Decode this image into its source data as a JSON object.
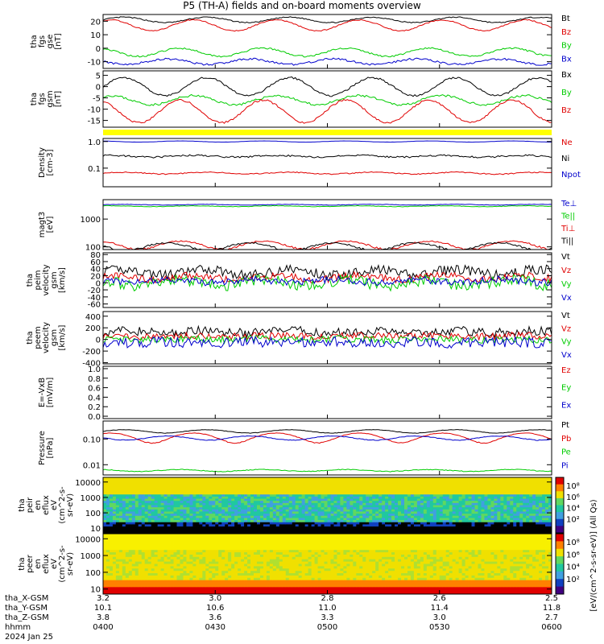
{
  "title": "P5 (TH-A) fields and on-board moments overview",
  "colors": {
    "black": "#000000",
    "red": "#e00000",
    "green": "#00cc00",
    "blue": "#0000cc",
    "yellow": "#ffff00"
  },
  "chart_data": [
    {
      "type": "line",
      "panel": "fgs_gse",
      "ylabel": [
        "tha",
        "fgs",
        "gse",
        "[nT]"
      ],
      "ylim": [
        -15,
        25
      ],
      "yticks": [
        "20",
        "10",
        "0",
        "-10"
      ],
      "ytick_values": [
        20,
        10,
        0,
        -10
      ],
      "log": false,
      "series": [
        {
          "name": "Bt",
          "color": "black",
          "base": 21,
          "amp": 2,
          "noise": 0.4
        },
        {
          "name": "Bz",
          "color": "red",
          "base": 17,
          "amp": 4,
          "noise": 0.4
        },
        {
          "name": "By",
          "color": "green",
          "base": -3,
          "amp": 3,
          "noise": 0.6
        },
        {
          "name": "Bx",
          "color": "blue",
          "base": -10,
          "amp": 2,
          "noise": 0.7
        }
      ]
    },
    {
      "type": "line",
      "panel": "fgs_gsm",
      "ylabel": [
        "tha",
        "fgs",
        "gsm",
        "[nT]"
      ],
      "ylim": [
        -18,
        7
      ],
      "yticks": [
        "5",
        "0",
        "-5",
        "-10",
        "-15"
      ],
      "ytick_values": [
        5,
        0,
        -5,
        -10,
        -15
      ],
      "log": false,
      "series": [
        {
          "name": "Bx",
          "color": "black",
          "base": 0,
          "amp": 4,
          "noise": 0.4
        },
        {
          "name": "By",
          "color": "green",
          "base": -6,
          "amp": 2,
          "noise": 0.5
        },
        {
          "name": "Bz",
          "color": "red",
          "base": -11,
          "amp": 5,
          "noise": 0.4
        }
      ]
    },
    {
      "type": "line",
      "panel": "density",
      "ylabel": [
        "Density",
        "[cm-3]"
      ],
      "ylim": [
        0.02,
        1.3
      ],
      "yticks": [
        "1.0",
        "0.1"
      ],
      "ytick_values": [
        1.0,
        0.1
      ],
      "log": true,
      "series": [
        {
          "name": "Ne",
          "color": "red",
          "base": 0.065,
          "amp": 0.005,
          "noise": 0.003
        },
        {
          "name": "Ni",
          "color": "black",
          "base": 0.28,
          "amp": 0.02,
          "noise": 0.02
        },
        {
          "name": "Npot",
          "color": "blue",
          "base": 1.0,
          "amp": 0.05,
          "noise": 0.005
        }
      ]
    },
    {
      "type": "line",
      "panel": "temperature",
      "ylabel": [
        "magt3",
        "[eV]"
      ],
      "ylim": [
        80,
        5000
      ],
      "yticks": [
        "1000",
        "100"
      ],
      "ytick_values": [
        1000,
        100
      ],
      "log": true,
      "series": [
        {
          "name": "Te⊥",
          "color": "blue",
          "base": 3300,
          "amp": 100,
          "noise": 60
        },
        {
          "name": "Te||",
          "color": "green",
          "base": 2900,
          "amp": 100,
          "noise": 60
        },
        {
          "name": "Ti⊥",
          "color": "red",
          "base": 120,
          "amp": 40,
          "noise": 8
        },
        {
          "name": "Ti||",
          "color": "black",
          "base": 105,
          "amp": 35,
          "noise": 8
        }
      ]
    },
    {
      "type": "line",
      "panel": "peim_velocity",
      "ylabel": [
        "tha",
        "peim",
        "velocity",
        "gsm",
        "[km/s]"
      ],
      "ylim": [
        -70,
        85
      ],
      "yticks": [
        "80",
        "60",
        "40",
        "20",
        "0",
        "-20",
        "-40",
        "-60"
      ],
      "ytick_values": [
        80,
        60,
        40,
        20,
        0,
        -20,
        -40,
        -60
      ],
      "log": false,
      "series": [
        {
          "name": "Vt",
          "color": "black",
          "base": 30,
          "amp": 8,
          "noise": 14
        },
        {
          "name": "Vz",
          "color": "red",
          "base": 15,
          "amp": 6,
          "noise": 10
        },
        {
          "name": "Vy",
          "color": "green",
          "base": 0,
          "amp": 8,
          "noise": 16
        },
        {
          "name": "Vx",
          "color": "blue",
          "base": 5,
          "amp": 4,
          "noise": 10
        }
      ]
    },
    {
      "type": "line",
      "panel": "peem_velocity",
      "ylabel": [
        "tha",
        "peem",
        "velocity",
        "gsm",
        "[km/s]"
      ],
      "ylim": [
        -420,
        480
      ],
      "yticks": [
        "400",
        "200",
        "0",
        "-200",
        "-400"
      ],
      "ytick_values": [
        400,
        200,
        0,
        -200,
        -400
      ],
      "log": false,
      "series": [
        {
          "name": "Vt",
          "color": "black",
          "base": 130,
          "amp": 20,
          "noise": 80
        },
        {
          "name": "Vz",
          "color": "red",
          "base": 60,
          "amp": 10,
          "noise": 60
        },
        {
          "name": "Vy",
          "color": "green",
          "base": 0,
          "amp": 10,
          "noise": 60
        },
        {
          "name": "Vx",
          "color": "blue",
          "base": -50,
          "amp": 10,
          "noise": 90
        }
      ]
    },
    {
      "type": "line",
      "panel": "efield",
      "ylabel": [
        "E=-VxB",
        "[mV/m]"
      ],
      "ylim": [
        -0.05,
        1.05
      ],
      "yticks": [
        "1.0",
        "0.8",
        "0.6",
        "0.4",
        "0.2",
        "0.0"
      ],
      "ytick_values": [
        1.0,
        0.8,
        0.6,
        0.4,
        0.2,
        0.0
      ],
      "log": false,
      "series": [
        {
          "name": "Ez",
          "color": "red"
        },
        {
          "name": "Ey",
          "color": "green"
        },
        {
          "name": "Ex",
          "color": "blue"
        }
      ]
    },
    {
      "type": "line",
      "panel": "pressure",
      "ylabel": [
        "Pressure",
        "[nPa]"
      ],
      "ylim": [
        0.004,
        0.5
      ],
      "yticks": [
        "0.10",
        "0.01"
      ],
      "ytick_values": [
        0.1,
        0.01
      ],
      "log": true,
      "series": [
        {
          "name": "Pt",
          "color": "black",
          "base": 0.2,
          "amp": 0.03,
          "noise": 0.004
        },
        {
          "name": "Pb",
          "color": "red",
          "base": 0.12,
          "amp": 0.05,
          "noise": 0.003
        },
        {
          "name": "Pe",
          "color": "green",
          "base": 0.006,
          "amp": 0.0005,
          "noise": 0.0002
        },
        {
          "name": "Pi",
          "color": "blue",
          "base": 0.11,
          "amp": 0.02,
          "noise": 0.003
        }
      ]
    },
    {
      "type": "heatmap",
      "panel": "peir_eflux",
      "ylabel": [
        "tha",
        "peir",
        "en",
        "eflux",
        "eV",
        "(cm^2-s-",
        "sr-eV)"
      ],
      "ylim": [
        5,
        20000
      ],
      "yticks": [
        "10000",
        "1000",
        "100",
        "10"
      ],
      "ytick_values": [
        10000,
        1000,
        100,
        10
      ],
      "log": true
    },
    {
      "type": "heatmap",
      "panel": "peer_eflux",
      "ylabel": [
        "tha",
        "peer",
        "en",
        "eflux",
        "eV",
        "(cm^2-s-",
        "sr-eV)"
      ],
      "ylim": [
        5,
        20000
      ],
      "yticks": [
        "10000",
        "1000",
        "100",
        "10"
      ],
      "ytick_values": [
        10000,
        1000,
        100,
        10
      ],
      "log": true
    }
  ],
  "colorbar": {
    "label": "[eV/(cm^2-s-sr-eV)] (All Qs)",
    "upper_ticks": [
      "10⁸",
      "10⁶",
      "10⁴",
      "10²"
    ],
    "lower_ticks": [
      "10⁸",
      "10⁶",
      "10⁴",
      "10²"
    ]
  },
  "xaxis": {
    "row_labels": [
      "tha_X-GSM",
      "tha_Y-GSM",
      "tha_Z-GSM",
      "hhmm",
      "2024 Jan 25"
    ],
    "ticks": [
      {
        "x": "3.2",
        "y": "10.1",
        "z": "3.8",
        "hhmm": "0400"
      },
      {
        "x": "3.0",
        "y": "10.6",
        "z": "3.6",
        "hhmm": "0430"
      },
      {
        "x": "2.8",
        "y": "11.0",
        "z": "3.3",
        "hhmm": "0500"
      },
      {
        "x": "2.6",
        "y": "11.4",
        "z": "3.0",
        "hhmm": "0530"
      },
      {
        "x": "2.5",
        "y": "11.8",
        "z": "2.7",
        "hhmm": "0600"
      }
    ]
  }
}
